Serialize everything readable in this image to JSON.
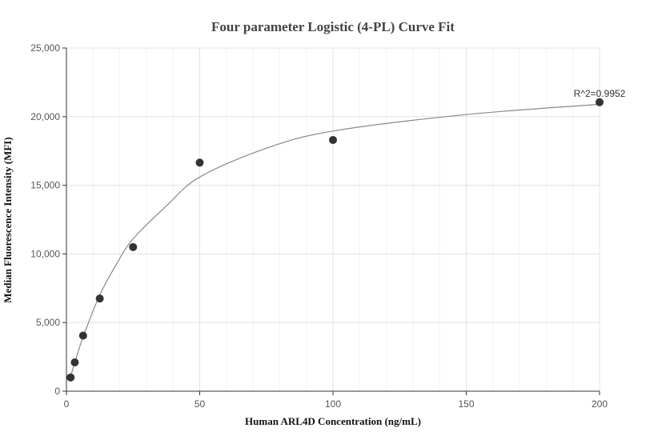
{
  "chart_data": {
    "type": "scatter",
    "title": "Four parameter Logistic (4-PL) Curve Fit",
    "xlabel": "Human ARL4D Concentration (ng/mL)",
    "ylabel": "Median Fluorescence Intensity (MFI)",
    "xlim": [
      0,
      200
    ],
    "ylim": [
      0,
      25000
    ],
    "x_ticks": [
      0,
      50,
      100,
      150,
      200
    ],
    "x_tick_labels": [
      "0",
      "50",
      "100",
      "150",
      "200"
    ],
    "y_ticks": [
      0,
      5000,
      10000,
      15000,
      20000,
      25000
    ],
    "y_tick_labels": [
      "0",
      "5,000",
      "10,000",
      "15,000",
      "20,000",
      "25,000"
    ],
    "grid": true,
    "annotation": "R^2=0.9952",
    "series": [
      {
        "type": "scatter",
        "x": [
          1.5625,
          3.125,
          6.25,
          12.5,
          25,
          50,
          100,
          200
        ],
        "y": [
          1000,
          2100,
          4050,
          6750,
          10500,
          16650,
          18300,
          21050
        ]
      },
      {
        "type": "line",
        "x": [
          1.5625,
          3.125,
          6.25,
          12.5,
          18.75,
          25,
          37.5,
          50,
          75,
          100,
          150,
          200
        ],
        "y": [
          1080,
          2080,
          3950,
          7000,
          9250,
          11100,
          13500,
          15600,
          17700,
          18950,
          20150,
          20900
        ]
      }
    ],
    "colors": {
      "points": "#333333",
      "curve": "#888888",
      "grid": "#e3e3e3"
    }
  }
}
